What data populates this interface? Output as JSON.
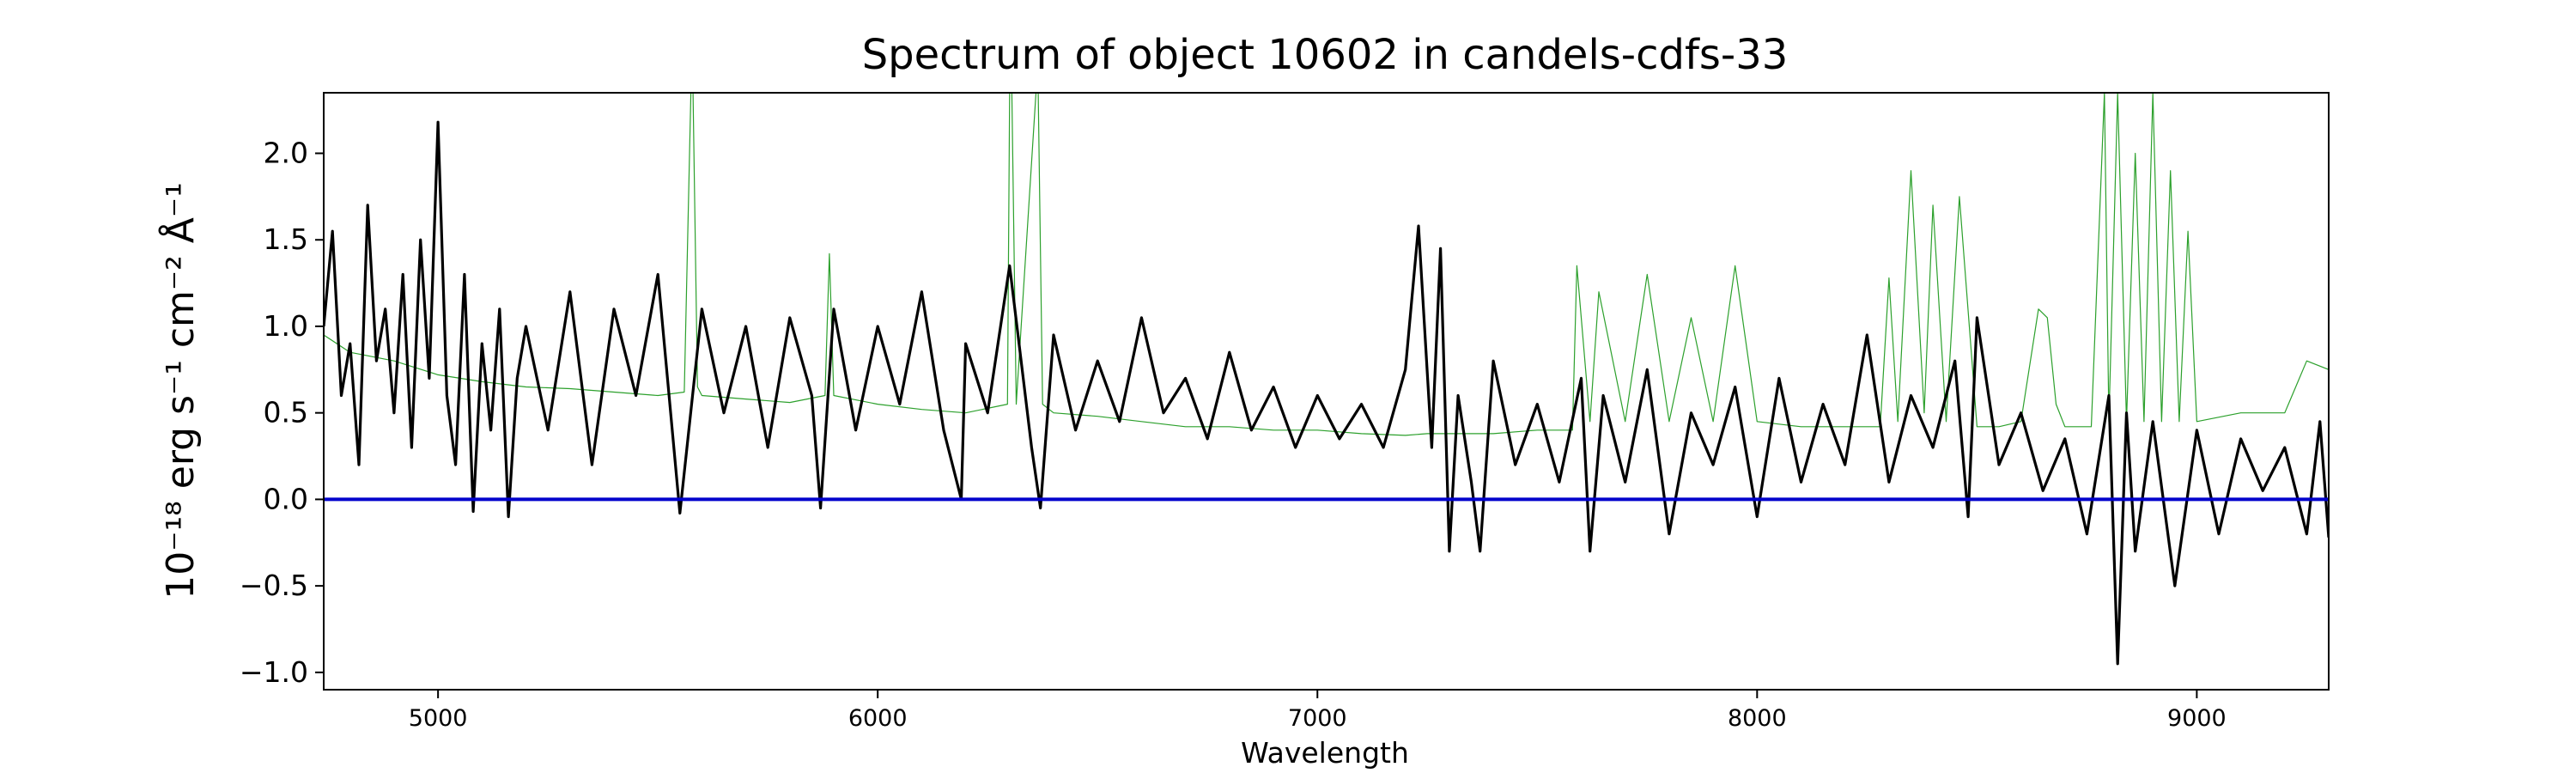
{
  "chart_data": {
    "type": "line",
    "title": "Spectrum of object 10602 in candels-cdfs-33",
    "xlabel": "Wavelength",
    "ylabel": "10⁻¹⁸ erg s⁻¹ cm⁻² Å⁻¹",
    "xlim": [
      4740,
      9300
    ],
    "ylim": [
      -1.1,
      2.35
    ],
    "xticks": [
      5000,
      6000,
      7000,
      8000,
      9000
    ],
    "yticks": [
      -1.0,
      -0.5,
      0.0,
      0.5,
      1.0,
      1.5,
      2.0
    ],
    "ytick_labels": [
      "−1.0",
      "−0.5",
      "0.0",
      "0.5",
      "1.0",
      "1.5",
      "2.0"
    ],
    "grid": false,
    "series": [
      {
        "color": "#2ca02c",
        "style": "thin",
        "x": [
          4740,
          4800,
          4900,
          5000,
          5100,
          5200,
          5300,
          5400,
          5500,
          5560,
          5575,
          5580,
          5590,
          5600,
          5700,
          5800,
          5880,
          5890,
          5900,
          6000,
          6100,
          6200,
          6295,
          6300,
          6305,
          6315,
          6360,
          6365,
          6375,
          6400,
          6500,
          6600,
          6700,
          6800,
          6900,
          7000,
          7100,
          7200,
          7250,
          7300,
          7400,
          7500,
          7580,
          7590,
          7620,
          7640,
          7700,
          7750,
          7800,
          7850,
          7900,
          7950,
          8000,
          8100,
          8200,
          8280,
          8300,
          8320,
          8350,
          8380,
          8400,
          8430,
          8460,
          8500,
          8550,
          8600,
          8640,
          8660,
          8680,
          8700,
          8760,
          8790,
          8800,
          8820,
          8840,
          8860,
          8880,
          8900,
          8920,
          8940,
          8960,
          8980,
          9000,
          9100,
          9200,
          9250,
          9300
        ],
        "y": [
          0.95,
          0.85,
          0.8,
          0.72,
          0.68,
          0.65,
          0.64,
          0.62,
          0.6,
          0.62,
          2.35,
          2.35,
          0.65,
          0.6,
          0.58,
          0.56,
          0.6,
          1.42,
          0.6,
          0.55,
          0.52,
          0.5,
          0.55,
          2.35,
          2.35,
          0.55,
          2.35,
          2.35,
          0.55,
          0.5,
          0.48,
          0.45,
          0.42,
          0.42,
          0.4,
          0.4,
          0.38,
          0.37,
          0.38,
          0.38,
          0.38,
          0.4,
          0.4,
          1.35,
          0.45,
          1.2,
          0.45,
          1.3,
          0.45,
          1.05,
          0.45,
          1.35,
          0.45,
          0.42,
          0.42,
          0.42,
          1.28,
          0.45,
          1.9,
          0.5,
          1.7,
          0.45,
          1.75,
          0.42,
          0.42,
          0.45,
          1.1,
          1.05,
          0.55,
          0.42,
          0.42,
          2.35,
          0.45,
          2.35,
          0.45,
          2.0,
          0.45,
          2.35,
          0.45,
          1.9,
          0.45,
          1.55,
          0.45,
          0.5,
          0.5,
          0.8,
          0.75
        ]
      },
      {
        "color": "#000000",
        "style": "thick",
        "x": [
          4740,
          4760,
          4780,
          4800,
          4820,
          4840,
          4860,
          4880,
          4900,
          4920,
          4940,
          4960,
          4980,
          5000,
          5020,
          5040,
          5060,
          5080,
          5100,
          5120,
          5140,
          5160,
          5180,
          5200,
          5250,
          5300,
          5350,
          5400,
          5450,
          5500,
          5550,
          5600,
          5650,
          5700,
          5750,
          5800,
          5850,
          5870,
          5900,
          5950,
          6000,
          6050,
          6100,
          6150,
          6190,
          6200,
          6250,
          6300,
          6350,
          6370,
          6400,
          6450,
          6500,
          6550,
          6600,
          6650,
          6700,
          6750,
          6800,
          6850,
          6900,
          6950,
          7000,
          7050,
          7100,
          7150,
          7200,
          7230,
          7260,
          7280,
          7300,
          7320,
          7350,
          7370,
          7400,
          7450,
          7500,
          7550,
          7600,
          7620,
          7650,
          7700,
          7750,
          7800,
          7850,
          7900,
          7950,
          8000,
          8050,
          8100,
          8150,
          8200,
          8250,
          8300,
          8350,
          8400,
          8450,
          8480,
          8500,
          8550,
          8600,
          8650,
          8700,
          8750,
          8800,
          8820,
          8840,
          8860,
          8900,
          8950,
          9000,
          9050,
          9100,
          9150,
          9200,
          9250,
          9280,
          9300
        ],
        "y": [
          1.0,
          1.55,
          0.6,
          0.9,
          0.2,
          1.7,
          0.8,
          1.1,
          0.5,
          1.3,
          0.3,
          1.5,
          0.7,
          2.18,
          0.6,
          0.2,
          1.3,
          -0.07,
          0.9,
          0.4,
          1.1,
          -0.1,
          0.7,
          1.0,
          0.4,
          1.2,
          0.2,
          1.1,
          0.6,
          1.3,
          -0.08,
          1.1,
          0.5,
          1.0,
          0.3,
          1.05,
          0.6,
          -0.05,
          1.1,
          0.4,
          1.0,
          0.55,
          1.2,
          0.4,
          0.0,
          0.9,
          0.5,
          1.35,
          0.3,
          -0.05,
          0.95,
          0.4,
          0.8,
          0.45,
          1.05,
          0.5,
          0.7,
          0.35,
          0.85,
          0.4,
          0.65,
          0.3,
          0.6,
          0.35,
          0.55,
          0.3,
          0.75,
          1.58,
          0.3,
          1.45,
          -0.3,
          0.6,
          0.1,
          -0.3,
          0.8,
          0.2,
          0.55,
          0.1,
          0.7,
          -0.3,
          0.6,
          0.1,
          0.75,
          -0.2,
          0.5,
          0.2,
          0.65,
          -0.1,
          0.7,
          0.1,
          0.55,
          0.2,
          0.95,
          0.1,
          0.6,
          0.3,
          0.8,
          -0.1,
          1.05,
          0.2,
          0.5,
          0.05,
          0.35,
          -0.2,
          0.6,
          -0.95,
          0.5,
          -0.3,
          0.45,
          -0.5,
          0.4,
          -0.2,
          0.35,
          0.05,
          0.3,
          -0.2,
          0.45,
          -0.22
        ]
      },
      {
        "color": "#0000cc",
        "style": "zero",
        "x": [
          4740,
          9300
        ],
        "y": [
          0.0,
          0.0
        ]
      }
    ]
  }
}
